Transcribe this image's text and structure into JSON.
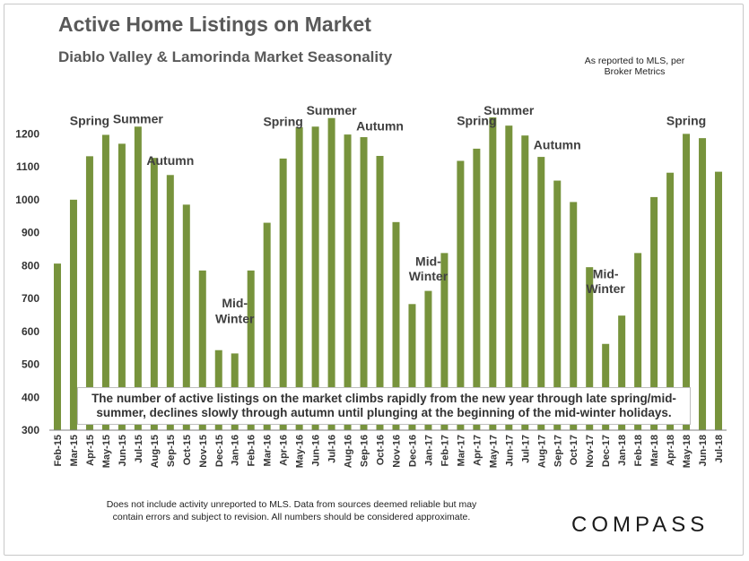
{
  "header": {
    "title": "Active Home Listings on Market",
    "subtitle": "Diablo Valley & Lamorinda Market Seasonality",
    "source_line1": "As reported to MLS, per",
    "source_line2": "Broker Metrics"
  },
  "callout": {
    "line1": "The number of active listings on the market climbs rapidly from the new year through late spring/mid-",
    "line2": "summer, declines slowly through autumn until plunging at the beginning of the mid-winter holidays."
  },
  "footer": {
    "disclaimer_line1": "Does not include activity unreported to MLS. Data from sources deemed reliable but may",
    "disclaimer_line2": "contain errors and subject to revision.   All numbers should be considered approximate.",
    "logo": "COMPASS"
  },
  "chart_data": {
    "type": "bar",
    "bar_color": "#77933c",
    "ylim": [
      300,
      1250
    ],
    "yticks": [
      300,
      400,
      500,
      600,
      700,
      800,
      900,
      1000,
      1100,
      1200
    ],
    "grid": false,
    "categories": [
      "Feb-15",
      "Mar-15",
      "Apr-15",
      "May-15",
      "Jun-15",
      "Jul-15",
      "Aug-15",
      "Sep-15",
      "Oct-15",
      "Nov-15",
      "Dec-15",
      "Jan-16",
      "Feb-16",
      "Mar-16",
      "Apr-16",
      "May-16",
      "Jun-16",
      "Jul-16",
      "Aug-16",
      "Sep-16",
      "Oct-16",
      "Nov-16",
      "Dec-16",
      "Jan-17",
      "Feb-17",
      "Mar-17",
      "Apr-17",
      "May-17",
      "Jun-17",
      "Jul-17",
      "Aug-17",
      "Sep-17",
      "Oct-17",
      "Nov-17",
      "Dec-17",
      "Jan-18",
      "Feb-18",
      "Mar-18",
      "Apr-18",
      "May-18",
      "Jun-18",
      "Jul-18"
    ],
    "values": [
      806,
      1000,
      1132,
      1197,
      1170,
      1222,
      1127,
      1075,
      985,
      785,
      543,
      533,
      785,
      930,
      1125,
      1220,
      1222,
      1248,
      1198,
      1190,
      1133,
      932,
      683,
      723,
      838,
      1118,
      1155,
      1252,
      1225,
      1195,
      1130,
      1058,
      993,
      795,
      562,
      648,
      838,
      1008,
      1082,
      1200,
      1187,
      1085
    ],
    "annotations": [
      {
        "text": "Spring",
        "category": "Apr-15",
        "value": 1227
      },
      {
        "text": "Summer",
        "category": "Jul-15",
        "value": 1232
      },
      {
        "text": "Autumn",
        "category": "Sep-15",
        "value": 1106
      },
      {
        "text": "Mid-",
        "category": "Jan-16",
        "value": 673
      },
      {
        "text": "Winter",
        "category": "Jan-16",
        "value": 625
      },
      {
        "text": "Spring",
        "category": "Apr-16",
        "value": 1224
      },
      {
        "text": "Summer",
        "category": "Jul-16",
        "value": 1258
      },
      {
        "text": "Autumn",
        "category": "Oct-16",
        "value": 1210
      },
      {
        "text": "Mid-",
        "category": "Jan-17",
        "value": 800
      },
      {
        "text": "Winter",
        "category": "Jan-17",
        "value": 755
      },
      {
        "text": "Spring",
        "category": "Apr-17",
        "value": 1227
      },
      {
        "text": "Summer",
        "category": "Jun-17",
        "value": 1258
      },
      {
        "text": "Autumn",
        "category": "Sep-17",
        "value": 1153
      },
      {
        "text": "Mid-",
        "category": "Dec-17",
        "value": 762
      },
      {
        "text": "Winter",
        "category": "Dec-17",
        "value": 716
      },
      {
        "text": "Spring",
        "category": "May-18",
        "value": 1227
      }
    ]
  }
}
